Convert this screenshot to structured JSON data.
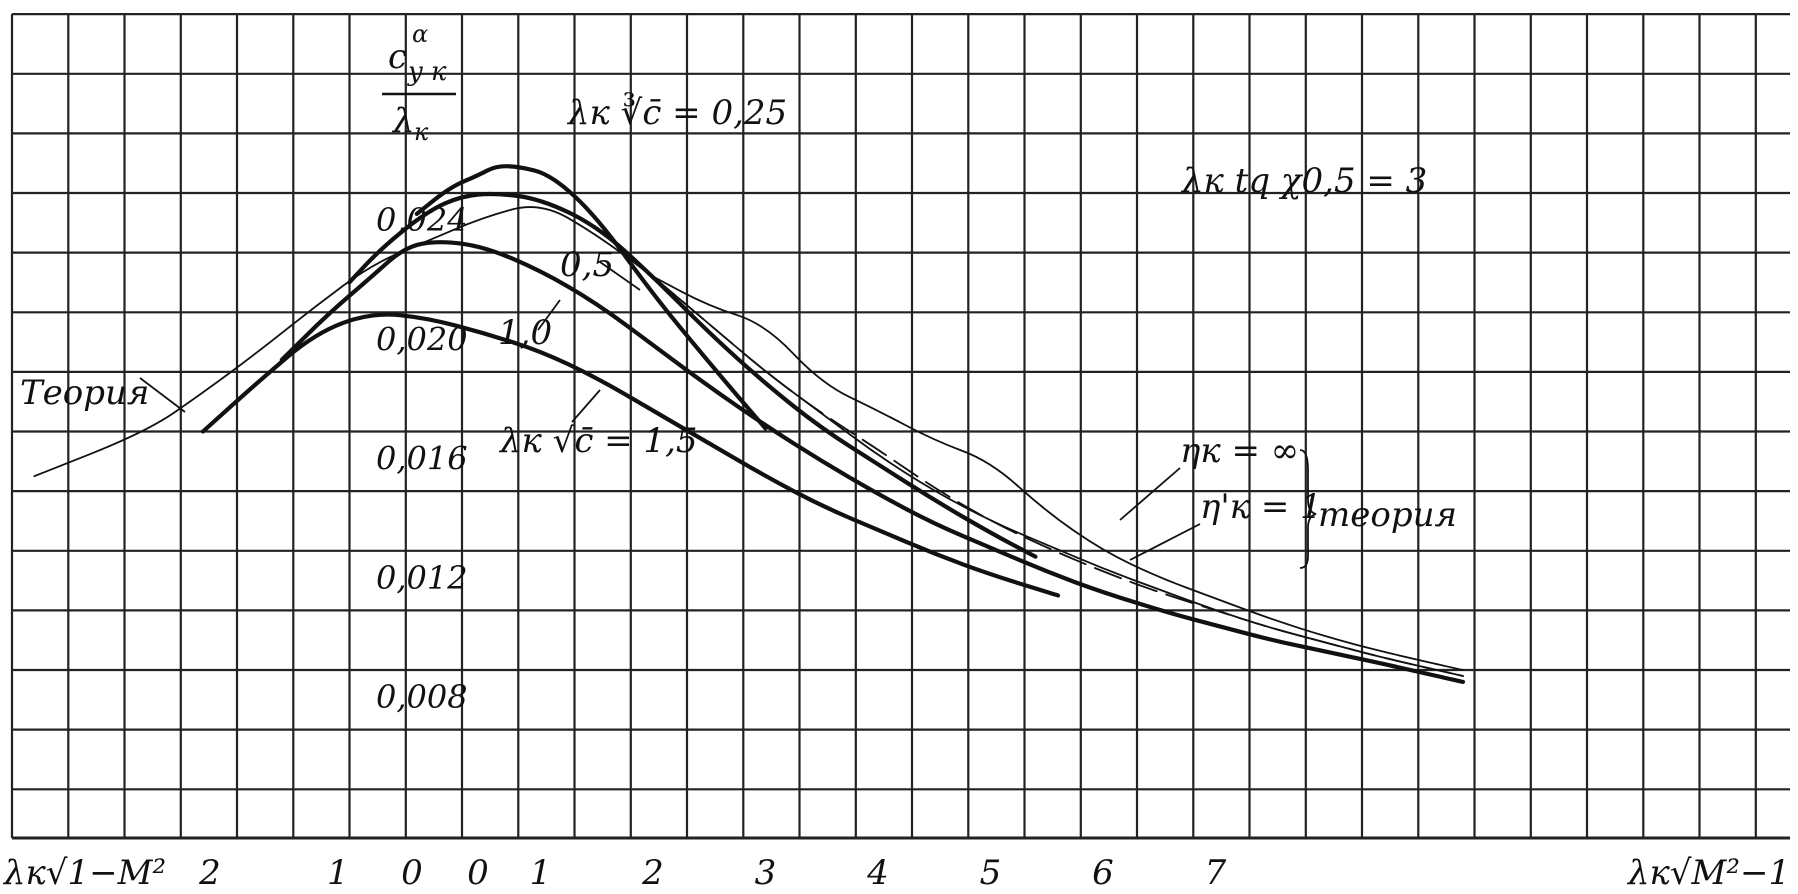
{
  "chart_data": {
    "type": "line",
    "title": "",
    "ylabel": {
      "top": "c",
      "top_super": "α",
      "top_sub": "y к",
      "bottom": "λ",
      "bottom_sub": "к"
    },
    "xlabel_left": "λк√1−M²",
    "xlabel_right": "λк√M²−1",
    "annotations": {
      "parameter": "λк tq χ0,5 = 3",
      "series_label_025": "λк ∛c̄ = 0,25",
      "series_label_05": "0,5",
      "series_label_10": "1,0",
      "series_label_15": "λк √c̄ = 1,5",
      "theory_left": "Теория",
      "eta_inf": "ηк = ∞",
      "eta_one": "η'к = 1",
      "theory_right": "теория"
    },
    "x_ticks": [
      "2",
      "1",
      "0",
      "0",
      "1",
      "2",
      "3",
      "4",
      "5",
      "6",
      "7"
    ],
    "y_ticks": [
      "0,024",
      "0,020",
      "0,016",
      "0,012",
      "0,008"
    ],
    "y_tick_values": [
      0.024,
      0.02,
      0.016,
      0.012,
      0.008
    ],
    "ylim": [
      0.0062,
      0.0282
    ],
    "x_axis_note": "subsonic branch left of 0 (λк√(1−M²) decreasing to 0), supersonic branch right of 0 (λк√(M²−1) increasing)",
    "grid": true,
    "series": [
      {
        "name": "λк ∛c̄ = 0,25",
        "kind": "experiment",
        "x": [
          -0.1,
          0.2,
          0.45,
          0.6,
          0.8,
          1.1,
          1.5,
          2.0,
          2.5,
          3.0
        ],
        "y": [
          0.0233,
          0.0242,
          0.0246,
          0.0249,
          0.0249,
          0.0246,
          0.0232,
          0.0206,
          0.0183,
          0.0161
        ]
      },
      {
        "name": "0,5",
        "kind": "experiment",
        "x": [
          -0.7,
          -0.4,
          0.0,
          0.3,
          0.6,
          1.0,
          1.5,
          2.0,
          2.5,
          3.0,
          3.5,
          4.0,
          4.5,
          5.0,
          5.4
        ],
        "y": [
          0.021,
          0.0222,
          0.0234,
          0.0239,
          0.024,
          0.0238,
          0.0229,
          0.0212,
          0.0193,
          0.0176,
          0.0161,
          0.0149,
          0.0137,
          0.0126,
          0.0118
        ]
      },
      {
        "name": "1,0",
        "kind": "experiment",
        "x": [
          -1.3,
          -0.9,
          -0.5,
          -0.2,
          0.1,
          0.5,
          1.0,
          1.5,
          2.0,
          2.5,
          3.0,
          3.5,
          4.0,
          4.5,
          5.0,
          5.5,
          6.0,
          6.6,
          7.0,
          7.5,
          8.0,
          8.5,
          9.2
        ],
        "y": [
          0.0184,
          0.0199,
          0.0212,
          0.0222,
          0.0224,
          0.0222,
          0.0214,
          0.0203,
          0.0189,
          0.0175,
          0.0162,
          0.015,
          0.0139,
          0.0129,
          0.0121,
          0.0113,
          0.0106,
          0.0099,
          0.0095,
          0.009,
          0.0086,
          0.0082,
          0.0076
        ]
      },
      {
        "name": "λк √c̄ = 1,5",
        "kind": "experiment",
        "x": [
          -2.0,
          -1.5,
          -1.0,
          -0.5,
          0.0,
          0.5,
          1.0,
          1.5,
          2.0,
          2.5,
          3.0,
          3.5,
          4.0,
          4.5,
          5.0,
          5.6
        ],
        "y": [
          0.016,
          0.0177,
          0.0193,
          0.02,
          0.0198,
          0.0193,
          0.0187,
          0.0178,
          0.0167,
          0.0156,
          0.0145,
          0.0135,
          0.0127,
          0.0119,
          0.0112,
          0.0105
        ]
      },
      {
        "name": "Теория",
        "kind": "theory",
        "x": [
          -3.5,
          -2.5,
          -2.0,
          -1.5,
          -1.0,
          -0.5,
          0.0,
          0.5,
          1.0,
          1.5,
          2.0,
          2.5,
          3.0,
          3.5,
          4.0,
          4.5,
          5.0,
          5.5,
          6.0,
          6.5,
          7.0,
          7.5,
          8.0,
          8.5,
          9.2
        ],
        "y": [
          0.0145,
          0.016,
          0.0173,
          0.0187,
          0.0202,
          0.0216,
          0.0224,
          0.0232,
          0.0237,
          0.0226,
          0.0212,
          0.0196,
          0.018,
          0.0166,
          0.0152,
          0.014,
          0.013,
          0.0122,
          0.0114,
          0.0107,
          0.01,
          0.0094,
          0.0089,
          0.0084,
          0.0078
        ]
      },
      {
        "name": "ηк = ∞",
        "kind": "theory",
        "x": [
          2.0,
          2.5,
          3.0,
          3.5,
          4.0,
          4.5,
          5.0,
          5.5,
          6.0,
          6.5,
          7.0,
          7.5,
          8.0,
          8.5,
          9.2
        ],
        "y": [
          0.0212,
          0.0202,
          0.0196,
          0.0176,
          0.0167,
          0.0157,
          0.015,
          0.0133,
          0.012,
          0.0111,
          0.0104,
          0.0097,
          0.0091,
          0.0086,
          0.008
        ]
      },
      {
        "name": "η'к = 1",
        "kind": "theory",
        "x": [
          2.0,
          2.5,
          3.0,
          3.5,
          4.0,
          4.5,
          5.0,
          5.5,
          6.0,
          6.5,
          7.0,
          7.5,
          8.0,
          8.5,
          9.2
        ],
        "y": [
          0.0212,
          0.0196,
          0.018,
          0.0166,
          0.0154,
          0.0141,
          0.013,
          0.0121,
          0.0113,
          0.0106,
          0.01,
          0.0094,
          0.0089,
          0.0084,
          0.0078
        ]
      }
    ]
  }
}
